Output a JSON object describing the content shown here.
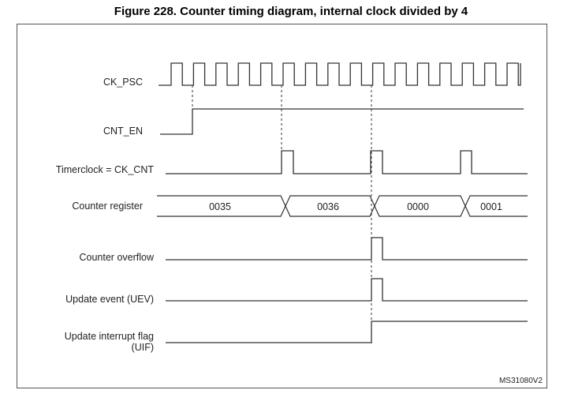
{
  "title": "Figure 228. Counter timing diagram, internal clock divided by 4",
  "figure_code": "MS31080V2",
  "signals": {
    "ck_psc": "CK_PSC",
    "cnt_en": "CNT_EN",
    "timerclock": "Timerclock = CK_CNT",
    "counter_register": "Counter register",
    "counter_overflow": "Counter overflow",
    "update_event": "Update event (UEV)",
    "uif_line1": "Update interrupt flag",
    "uif_line2": "(UIF)"
  },
  "counter_values": [
    "0035",
    "0036",
    "0000",
    "0001"
  ]
}
